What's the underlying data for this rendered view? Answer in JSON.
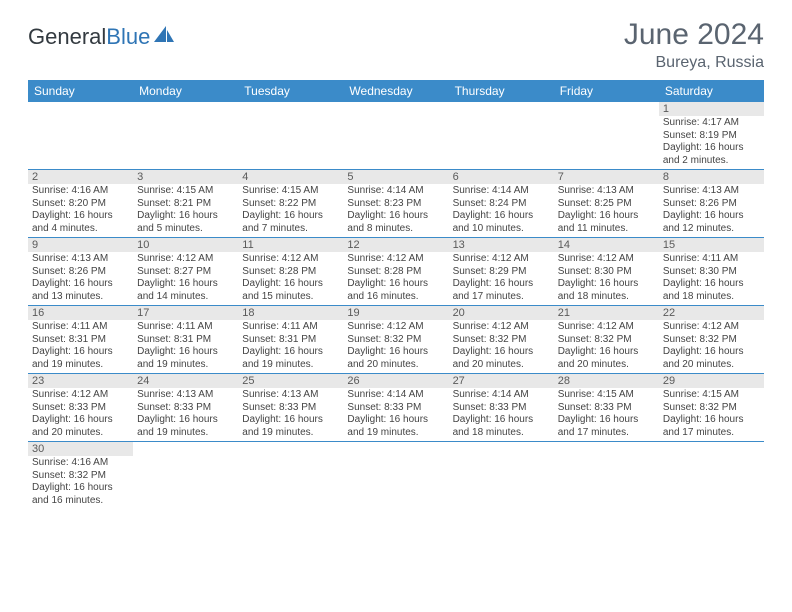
{
  "logo": {
    "part1": "General",
    "part2": "Blue"
  },
  "title": "June 2024",
  "location": "Bureya, Russia",
  "colors": {
    "header_bg": "#3b8bc9",
    "header_text": "#ffffff",
    "daynum_bg": "#e8e8e8",
    "row_border": "#3b8bc9",
    "title_color": "#5a6470"
  },
  "days_of_week": [
    "Sunday",
    "Monday",
    "Tuesday",
    "Wednesday",
    "Thursday",
    "Friday",
    "Saturday"
  ],
  "weeks": [
    [
      null,
      null,
      null,
      null,
      null,
      null,
      {
        "n": "1",
        "sr": "Sunrise: 4:17 AM",
        "ss": "Sunset: 8:19 PM",
        "dl": "Daylight: 16 hours and 2 minutes."
      }
    ],
    [
      {
        "n": "2",
        "sr": "Sunrise: 4:16 AM",
        "ss": "Sunset: 8:20 PM",
        "dl": "Daylight: 16 hours and 4 minutes."
      },
      {
        "n": "3",
        "sr": "Sunrise: 4:15 AM",
        "ss": "Sunset: 8:21 PM",
        "dl": "Daylight: 16 hours and 5 minutes."
      },
      {
        "n": "4",
        "sr": "Sunrise: 4:15 AM",
        "ss": "Sunset: 8:22 PM",
        "dl": "Daylight: 16 hours and 7 minutes."
      },
      {
        "n": "5",
        "sr": "Sunrise: 4:14 AM",
        "ss": "Sunset: 8:23 PM",
        "dl": "Daylight: 16 hours and 8 minutes."
      },
      {
        "n": "6",
        "sr": "Sunrise: 4:14 AM",
        "ss": "Sunset: 8:24 PM",
        "dl": "Daylight: 16 hours and 10 minutes."
      },
      {
        "n": "7",
        "sr": "Sunrise: 4:13 AM",
        "ss": "Sunset: 8:25 PM",
        "dl": "Daylight: 16 hours and 11 minutes."
      },
      {
        "n": "8",
        "sr": "Sunrise: 4:13 AM",
        "ss": "Sunset: 8:26 PM",
        "dl": "Daylight: 16 hours and 12 minutes."
      }
    ],
    [
      {
        "n": "9",
        "sr": "Sunrise: 4:13 AM",
        "ss": "Sunset: 8:26 PM",
        "dl": "Daylight: 16 hours and 13 minutes."
      },
      {
        "n": "10",
        "sr": "Sunrise: 4:12 AM",
        "ss": "Sunset: 8:27 PM",
        "dl": "Daylight: 16 hours and 14 minutes."
      },
      {
        "n": "11",
        "sr": "Sunrise: 4:12 AM",
        "ss": "Sunset: 8:28 PM",
        "dl": "Daylight: 16 hours and 15 minutes."
      },
      {
        "n": "12",
        "sr": "Sunrise: 4:12 AM",
        "ss": "Sunset: 8:28 PM",
        "dl": "Daylight: 16 hours and 16 minutes."
      },
      {
        "n": "13",
        "sr": "Sunrise: 4:12 AM",
        "ss": "Sunset: 8:29 PM",
        "dl": "Daylight: 16 hours and 17 minutes."
      },
      {
        "n": "14",
        "sr": "Sunrise: 4:12 AM",
        "ss": "Sunset: 8:30 PM",
        "dl": "Daylight: 16 hours and 18 minutes."
      },
      {
        "n": "15",
        "sr": "Sunrise: 4:11 AM",
        "ss": "Sunset: 8:30 PM",
        "dl": "Daylight: 16 hours and 18 minutes."
      }
    ],
    [
      {
        "n": "16",
        "sr": "Sunrise: 4:11 AM",
        "ss": "Sunset: 8:31 PM",
        "dl": "Daylight: 16 hours and 19 minutes."
      },
      {
        "n": "17",
        "sr": "Sunrise: 4:11 AM",
        "ss": "Sunset: 8:31 PM",
        "dl": "Daylight: 16 hours and 19 minutes."
      },
      {
        "n": "18",
        "sr": "Sunrise: 4:11 AM",
        "ss": "Sunset: 8:31 PM",
        "dl": "Daylight: 16 hours and 19 minutes."
      },
      {
        "n": "19",
        "sr": "Sunrise: 4:12 AM",
        "ss": "Sunset: 8:32 PM",
        "dl": "Daylight: 16 hours and 20 minutes."
      },
      {
        "n": "20",
        "sr": "Sunrise: 4:12 AM",
        "ss": "Sunset: 8:32 PM",
        "dl": "Daylight: 16 hours and 20 minutes."
      },
      {
        "n": "21",
        "sr": "Sunrise: 4:12 AM",
        "ss": "Sunset: 8:32 PM",
        "dl": "Daylight: 16 hours and 20 minutes."
      },
      {
        "n": "22",
        "sr": "Sunrise: 4:12 AM",
        "ss": "Sunset: 8:32 PM",
        "dl": "Daylight: 16 hours and 20 minutes."
      }
    ],
    [
      {
        "n": "23",
        "sr": "Sunrise: 4:12 AM",
        "ss": "Sunset: 8:33 PM",
        "dl": "Daylight: 16 hours and 20 minutes."
      },
      {
        "n": "24",
        "sr": "Sunrise: 4:13 AM",
        "ss": "Sunset: 8:33 PM",
        "dl": "Daylight: 16 hours and 19 minutes."
      },
      {
        "n": "25",
        "sr": "Sunrise: 4:13 AM",
        "ss": "Sunset: 8:33 PM",
        "dl": "Daylight: 16 hours and 19 minutes."
      },
      {
        "n": "26",
        "sr": "Sunrise: 4:14 AM",
        "ss": "Sunset: 8:33 PM",
        "dl": "Daylight: 16 hours and 19 minutes."
      },
      {
        "n": "27",
        "sr": "Sunrise: 4:14 AM",
        "ss": "Sunset: 8:33 PM",
        "dl": "Daylight: 16 hours and 18 minutes."
      },
      {
        "n": "28",
        "sr": "Sunrise: 4:15 AM",
        "ss": "Sunset: 8:33 PM",
        "dl": "Daylight: 16 hours and 17 minutes."
      },
      {
        "n": "29",
        "sr": "Sunrise: 4:15 AM",
        "ss": "Sunset: 8:32 PM",
        "dl": "Daylight: 16 hours and 17 minutes."
      }
    ],
    [
      {
        "n": "30",
        "sr": "Sunrise: 4:16 AM",
        "ss": "Sunset: 8:32 PM",
        "dl": "Daylight: 16 hours and 16 minutes."
      },
      null,
      null,
      null,
      null,
      null,
      null
    ]
  ]
}
